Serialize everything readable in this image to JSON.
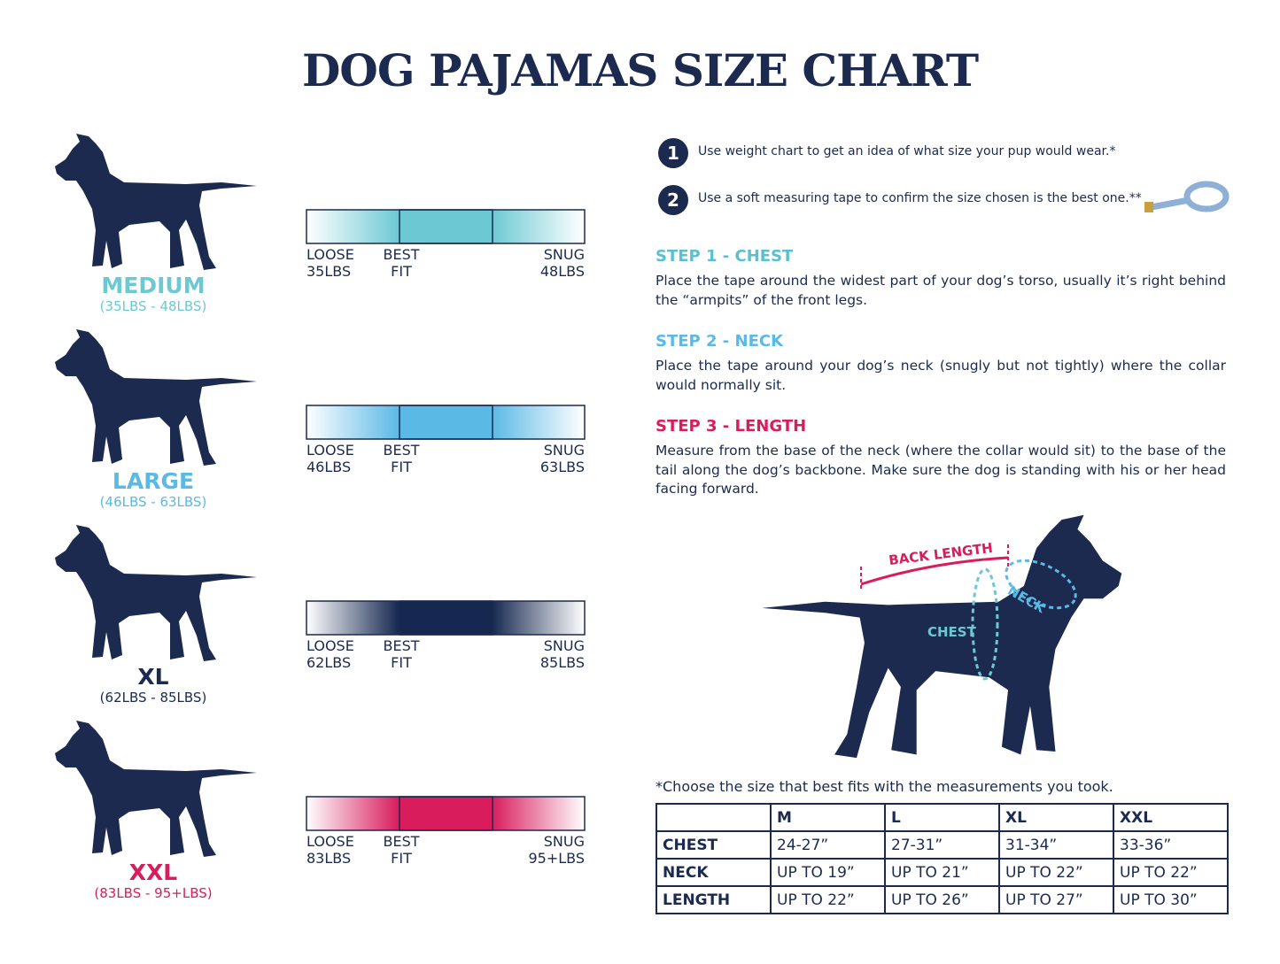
{
  "title": "DOG PAJAMAS SIZE CHART",
  "sizes": [
    {
      "name": "MEDIUM",
      "range": "(35LBS - 48LBS)",
      "color": "#6cc9d3",
      "loose": [
        "LOOSE",
        "35LBS"
      ],
      "best": [
        "BEST",
        "FIT"
      ],
      "snug": [
        "SNUG",
        "48LBS"
      ]
    },
    {
      "name": "LARGE",
      "range": "(46LBS - 63LBS)",
      "color": "#5bb9e6",
      "loose": [
        "LOOSE",
        "46LBS"
      ],
      "best": [
        "BEST",
        "FIT"
      ],
      "snug": [
        "SNUG",
        "63LBS"
      ]
    },
    {
      "name": "XL",
      "range": "(62LBS - 85LBS)",
      "color": "#162850",
      "loose": [
        "LOOSE",
        "62LBS"
      ],
      "best": [
        "BEST",
        "FIT"
      ],
      "snug": [
        "SNUG",
        "85LBS"
      ]
    },
    {
      "name": "XXL",
      "range": "(83LBS - 95+LBS)",
      "color": "#d81c5c",
      "loose": [
        "LOOSE",
        "83LBS"
      ],
      "best": [
        "BEST",
        "FIT"
      ],
      "snug": [
        "SNUG",
        "95+LBS"
      ]
    }
  ],
  "instructions": [
    {
      "number": "1",
      "text": "Use weight chart to get an idea of what size your pup would wear.*"
    },
    {
      "number": "2",
      "text": "Use a soft measuring tape to confirm the size chosen is the best one.**"
    }
  ],
  "steps": [
    {
      "title": "STEP 1 - CHEST",
      "color": "#5bbfd0",
      "text": "Place the tape around the widest part of your dog’s torso, usually it’s right behind the “armpits” of the front legs."
    },
    {
      "title": "STEP 2 - NECK",
      "color": "#5bb9e6",
      "text": "Place the tape around your dog’s neck (snugly but not tightly) where the collar would normally sit."
    },
    {
      "title": "STEP 3 - LENGTH",
      "color": "#d81c5c",
      "text": "Measure from the base of the neck (where the collar would sit) to the base of the tail along the dog’s backbone. Make sure the dog is standing with his or her head facing forward."
    }
  ],
  "diagram": {
    "back_length": "BACK LENGTH",
    "neck": "NECK",
    "chest": "CHEST"
  },
  "note": "*Choose the size that best fits with the measurements you took.",
  "table": {
    "header": [
      "M",
      "L",
      "XL",
      "XXL"
    ],
    "rows": [
      [
        "CHEST",
        "24-27”",
        "27-31”",
        "31-34”",
        "33-36”"
      ],
      [
        "NECK",
        "UP TO 19”",
        "UP TO 21”",
        "UP TO 22”",
        "UP TO 22”"
      ],
      [
        "LENGTH",
        "UP TO 22”",
        "UP TO 26”",
        "UP TO 27”",
        "UP TO 30”"
      ]
    ]
  }
}
